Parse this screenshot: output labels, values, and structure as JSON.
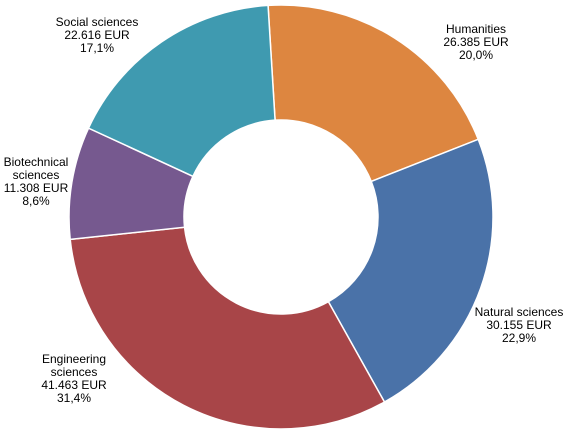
{
  "chart_data": {
    "type": "donut",
    "categories": [
      "Humanities",
      "Natural sciences",
      "Engineering sciences",
      "Biotechnical sciences",
      "Social sciences"
    ],
    "values": [
      26385,
      30155,
      41463,
      11308,
      22616
    ],
    "value_labels": [
      "26.385 EUR",
      "30.155 EUR",
      "41.463 EUR",
      "11.308 EUR",
      "22.616 EUR"
    ],
    "percentages": [
      20.0,
      22.9,
      31.4,
      8.6,
      17.1
    ],
    "percentage_labels": [
      "20,0%",
      "22,9%",
      "31,4%",
      "8,6%",
      "17,1%"
    ],
    "colors": [
      "#dd8640",
      "#4a72a8",
      "#a84548",
      "#76598f",
      "#3f9ab0"
    ]
  }
}
